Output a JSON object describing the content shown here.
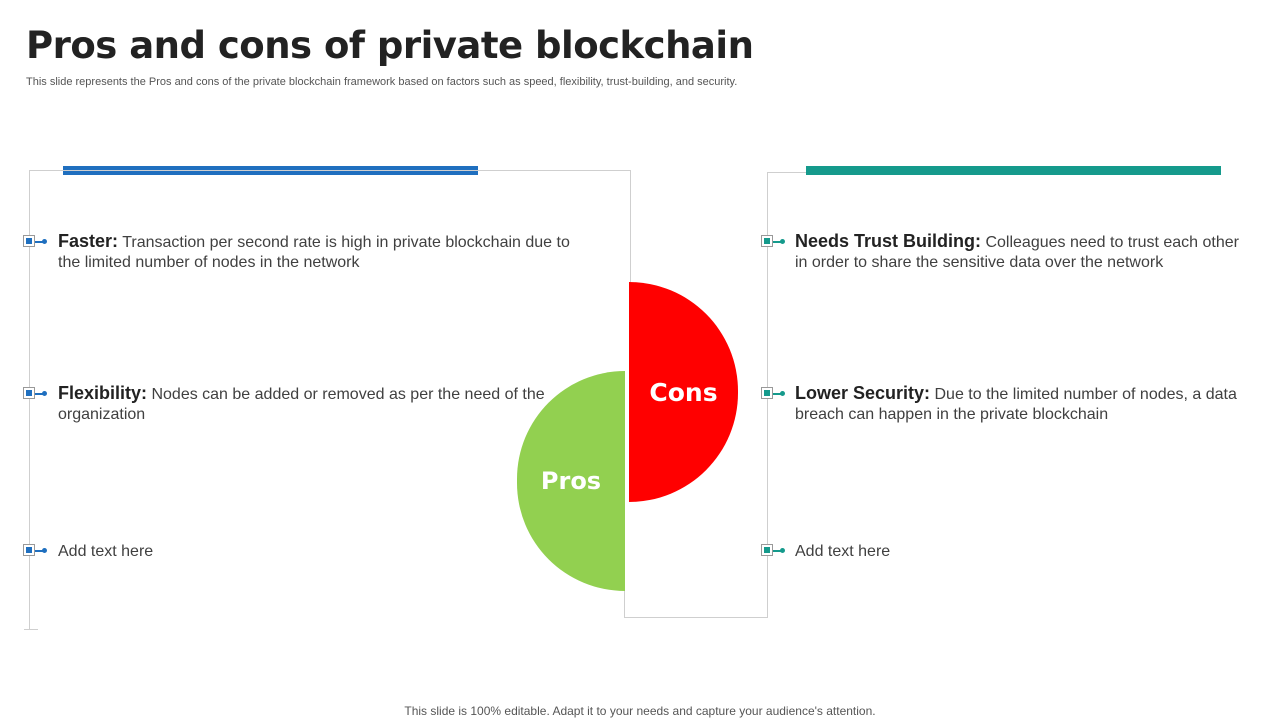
{
  "title": "Pros and cons of private blockchain",
  "subtitle": "This slide represents the Pros and cons of the private blockchain framework based on factors such as speed, flexibility, trust-building, and security.",
  "colors": {
    "pros_bar": "#1f6fbf",
    "cons_bar": "#159a8c",
    "cons_shape": "#ff0000",
    "pros_shape": "#92d050"
  },
  "center": {
    "pros_label": "Pros",
    "cons_label": "Cons"
  },
  "pros": [
    {
      "heading": "Faster:",
      "text": " Transaction per second rate is high in private blockchain due to the limited number of nodes in the network"
    },
    {
      "heading": "Flexibility:",
      "text": " Nodes can be added or removed as per the need of the organization"
    },
    {
      "heading": "",
      "text": "Add text here"
    }
  ],
  "cons": [
    {
      "heading": "Needs Trust Building:",
      "text": " Colleagues need to trust each other in order to share the sensitive data over the network"
    },
    {
      "heading": "Lower Security:",
      "text": " Due to the limited number of nodes, a data breach can happen in the private blockchain"
    },
    {
      "heading": "",
      "text": "Add text here"
    }
  ],
  "footer": "This slide is 100% editable. Adapt it to your needs and capture your audience's attention."
}
